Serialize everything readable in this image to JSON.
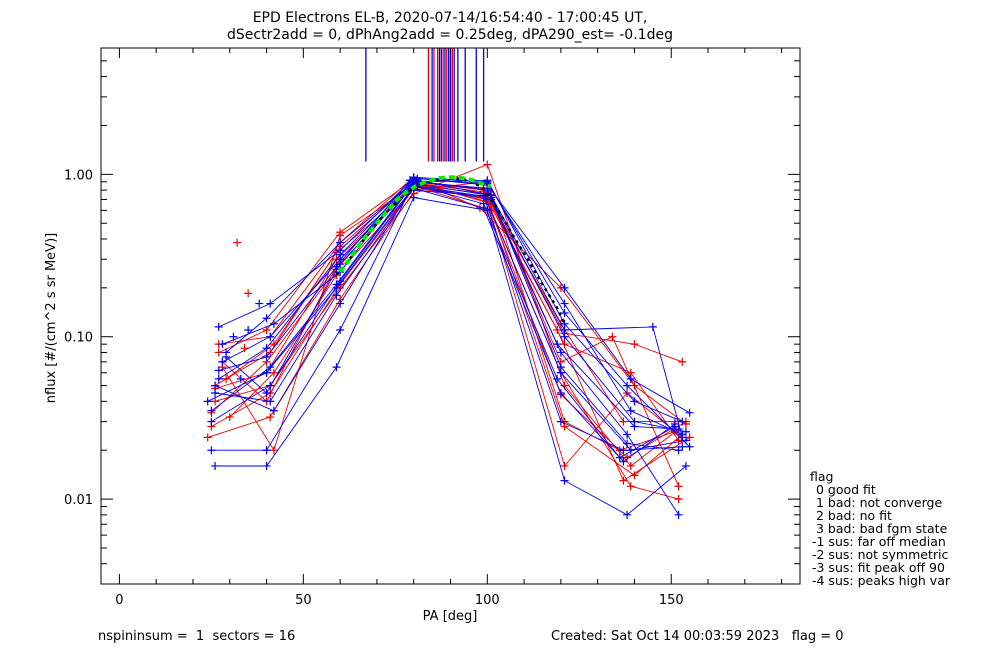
{
  "title_line1": "EPD Electrons EL-B, 2020-07-14/16:54:40 - 17:00:45 UT,",
  "title_line2": "dSectr2add = 0, dPhAng2add = 0.25deg, dPA290_est=  -0.1deg",
  "footer_left": "nspininsum =  1  sectors = 16",
  "footer_right": "Created: Sat Oct 14 00:03:59 2023   flag = 0",
  "legend": {
    "title": "flag",
    "items": [
      " 0 good fit",
      " 1 bad: not converge",
      " 2 bad: no fit",
      " 3 bad: bad fgm state",
      "-1 sus: far off median",
      "-2 sus: not symmetric",
      "-3 sus: fit peak off 90",
      "-4 sus: peaks high var"
    ]
  },
  "colors": {
    "red_series": "#ee0000",
    "blue_series": "#0000ee",
    "fit_curve": "#00ee00",
    "median_curve": "#000000",
    "axes": "#000000"
  },
  "chart_data": {
    "type": "line",
    "xlabel": "PA [deg]",
    "ylabel": "nflux [#/(cm^2 s sr MeV)]",
    "xlim": [
      -5,
      185
    ],
    "ylim": [
      0.003,
      6.0
    ],
    "yscale": "log",
    "xticks": [
      0,
      50,
      100,
      150
    ],
    "xtick_labels": [
      "0",
      "50",
      "100",
      "150"
    ],
    "yticks": [
      0.01,
      0.1,
      1.0
    ],
    "ytick_labels": [
      "0.01",
      "0.10",
      "1.00"
    ],
    "grid": false,
    "legend_position": "right-outside-bottom",
    "spikes": {
      "y_bottom": 1.2,
      "y_top": 6.0,
      "red_x": [
        84.0,
        85.5,
        86.5,
        88.0,
        89.0,
        90.5
      ],
      "blue_x": [
        67.0,
        85.0,
        87.0,
        87.5,
        88.5,
        89.5,
        90.0,
        91.0,
        92.0,
        94.0,
        97.0,
        99.0
      ]
    },
    "fit_curve": {
      "x": [
        60,
        63,
        66,
        69,
        72,
        75,
        78,
        81,
        84,
        87,
        90,
        93,
        96,
        99,
        101
      ],
      "y": [
        0.25,
        0.31,
        0.39,
        0.47,
        0.57,
        0.68,
        0.78,
        0.86,
        0.91,
        0.95,
        0.96,
        0.95,
        0.92,
        0.87,
        0.84
      ]
    },
    "median_curve": {
      "x": [
        59,
        63,
        67,
        71,
        75,
        79,
        83,
        87,
        91,
        95,
        99,
        103,
        107,
        111,
        115,
        119,
        121
      ],
      "y": [
        0.24,
        0.31,
        0.41,
        0.53,
        0.66,
        0.8,
        0.88,
        0.93,
        0.95,
        0.92,
        0.82,
        0.6,
        0.42,
        0.3,
        0.21,
        0.15,
        0.12
      ]
    },
    "series": [
      {
        "color": "red",
        "x": [
          25,
          41,
          60,
          80,
          100,
          121,
          140,
          153
        ],
        "y": [
          0.028,
          0.045,
          0.21,
          0.82,
          0.72,
          0.028,
          0.014,
          0.025
        ]
      },
      {
        "color": "red",
        "x": [
          26,
          40,
          59,
          81,
          99,
          120,
          138,
          154
        ],
        "y": [
          0.048,
          0.06,
          0.3,
          0.88,
          0.78,
          0.044,
          0.018,
          0.03
        ]
      },
      {
        "color": "red",
        "x": [
          27,
          41,
          60,
          79,
          101,
          121,
          139,
          152
        ],
        "y": [
          0.09,
          0.1,
          0.38,
          0.92,
          0.66,
          0.09,
          0.06,
          0.023
        ]
      },
      {
        "color": "red",
        "x": [
          28,
          42,
          60,
          80,
          100,
          119,
          137,
          155
        ],
        "y": [
          0.065,
          0.02,
          0.42,
          0.86,
          0.7,
          0.11,
          0.013,
          0.024
        ]
      },
      {
        "color": "red",
        "x": [
          25,
          40,
          59,
          80,
          99,
          121,
          140,
          153
        ],
        "y": [
          0.034,
          0.07,
          0.26,
          0.9,
          0.82,
          0.105,
          0.09,
          0.07
        ]
      },
      {
        "color": "red",
        "x": [
          24,
          41,
          60,
          81,
          101,
          120,
          139,
          152
        ],
        "y": [
          0.024,
          0.032,
          0.17,
          0.84,
          0.6,
          0.06,
          0.012,
          0.01
        ]
      },
      {
        "color": "red",
        "x": [
          29,
          42,
          59,
          79,
          100,
          121,
          136,
          151
        ],
        "y": [
          0.055,
          0.09,
          0.33,
          0.8,
          0.9,
          0.03,
          0.02,
          0.026
        ]
      },
      {
        "color": "red",
        "x": [
          27,
          40,
          60,
          80,
          98,
          120,
          140,
          154
        ],
        "y": [
          0.08,
          0.11,
          0.44,
          0.93,
          0.62,
          0.2,
          0.05,
          0.029
        ]
      },
      {
        "color": "red",
        "x": [
          26,
          41,
          60,
          80,
          100,
          121,
          139,
          152
        ],
        "y": [
          0.04,
          0.05,
          0.2,
          0.76,
          1.15,
          0.05,
          0.016,
          0.027
        ]
      },
      {
        "color": "red",
        "x": [
          30,
          42,
          59,
          81,
          101,
          120,
          134,
          152
        ],
        "y": [
          0.032,
          0.06,
          0.24,
          0.86,
          0.75,
          0.07,
          0.1,
          0.012
        ]
      },
      {
        "color": "red",
        "x": [
          28,
          40,
          60,
          80,
          100,
          121,
          138,
          153
        ],
        "y": [
          0.07,
          0.04,
          0.3,
          0.88,
          0.68,
          0.016,
          0.045,
          0.024
        ]
      },
      {
        "color": "red",
        "x": [
          26,
          41,
          60,
          80,
          99,
          120,
          137,
          151
        ],
        "y": [
          0.05,
          0.08,
          0.36,
          0.9,
          0.8,
          0.12,
          0.03,
          0.03
        ]
      },
      {
        "color": "blue",
        "x": [
          26,
          40,
          59,
          80,
          100,
          121,
          138,
          154
        ],
        "y": [
          0.016,
          0.016,
          0.065,
          0.72,
          0.6,
          0.013,
          0.008,
          0.016
        ]
      },
      {
        "color": "blue",
        "x": [
          25,
          40,
          60,
          79,
          99,
          120,
          137,
          153
        ],
        "y": [
          0.02,
          0.02,
          0.11,
          0.8,
          0.74,
          0.03,
          0.02,
          0.021
        ]
      },
      {
        "color": "blue",
        "x": [
          27,
          41,
          60,
          80,
          100,
          121,
          139,
          155
        ],
        "y": [
          0.115,
          0.16,
          0.34,
          0.95,
          0.86,
          0.2,
          0.055,
          0.034
        ]
      },
      {
        "color": "blue",
        "x": [
          24,
          40,
          59,
          80,
          101,
          120,
          138,
          152
        ],
        "y": [
          0.04,
          0.06,
          0.2,
          0.84,
          0.7,
          0.08,
          0.025,
          0.008
        ]
      },
      {
        "color": "blue",
        "x": [
          28,
          41,
          60,
          81,
          100,
          121,
          140,
          153
        ],
        "y": [
          0.07,
          0.1,
          0.3,
          0.9,
          0.92,
          0.12,
          0.04,
          0.03
        ]
      },
      {
        "color": "blue",
        "x": [
          26,
          42,
          60,
          80,
          99,
          119,
          136,
          151
        ],
        "y": [
          0.05,
          0.035,
          0.16,
          0.86,
          0.66,
          0.055,
          0.018,
          0.028
        ]
      },
      {
        "color": "blue",
        "x": [
          27,
          40,
          59,
          79,
          100,
          121,
          140,
          154
        ],
        "y": [
          0.062,
          0.075,
          0.27,
          0.92,
          0.8,
          0.1,
          0.03,
          0.026
        ]
      },
      {
        "color": "blue",
        "x": [
          25,
          41,
          60,
          80,
          101,
          120,
          138,
          152
        ],
        "y": [
          0.03,
          0.05,
          0.22,
          0.88,
          0.74,
          0.065,
          0.022,
          0.02
        ]
      },
      {
        "color": "blue",
        "x": [
          29,
          40,
          60,
          81,
          100,
          121,
          139,
          153
        ],
        "y": [
          0.08,
          0.13,
          0.38,
          0.94,
          0.88,
          0.16,
          0.035,
          0.025
        ]
      },
      {
        "color": "blue",
        "x": [
          26,
          41,
          59,
          80,
          99,
          120,
          137,
          151
        ],
        "y": [
          0.045,
          0.04,
          0.18,
          0.82,
          0.62,
          0.045,
          0.017,
          0.029
        ]
      },
      {
        "color": "blue",
        "x": [
          28,
          42,
          60,
          80,
          100,
          121,
          138,
          155
        ],
        "y": [
          0.09,
          0.12,
          0.25,
          0.96,
          0.9,
          0.14,
          0.05,
          0.021
        ]
      },
      {
        "color": "blue",
        "x": [
          27,
          40,
          60,
          79,
          101,
          119,
          140,
          152
        ],
        "y": [
          0.055,
          0.085,
          0.32,
          0.86,
          0.72,
          0.09,
          0.028,
          0.027
        ]
      },
      {
        "color": "blue",
        "x": [
          25,
          41,
          59,
          80,
          100,
          121,
          145,
          153
        ],
        "y": [
          0.035,
          0.065,
          0.21,
          0.9,
          0.82,
          0.11,
          0.115,
          0.024
        ]
      },
      {
        "color": "blue",
        "x": [
          29,
          40,
          60,
          81,
          99,
          120,
          139,
          154
        ],
        "y": [
          0.075,
          0.045,
          0.28,
          0.92,
          0.76,
          0.06,
          0.02,
          0.023
        ]
      }
    ],
    "outliers": [
      {
        "color": "red",
        "x": 32,
        "y": 0.38
      },
      {
        "color": "red",
        "x": 35,
        "y": 0.185
      },
      {
        "color": "blue",
        "x": 35,
        "y": 0.11
      },
      {
        "color": "blue",
        "x": 38,
        "y": 0.16
      },
      {
        "color": "blue",
        "x": 31,
        "y": 0.1
      },
      {
        "color": "red",
        "x": 34,
        "y": 0.085
      },
      {
        "color": "blue",
        "x": 33,
        "y": 0.055
      }
    ]
  }
}
